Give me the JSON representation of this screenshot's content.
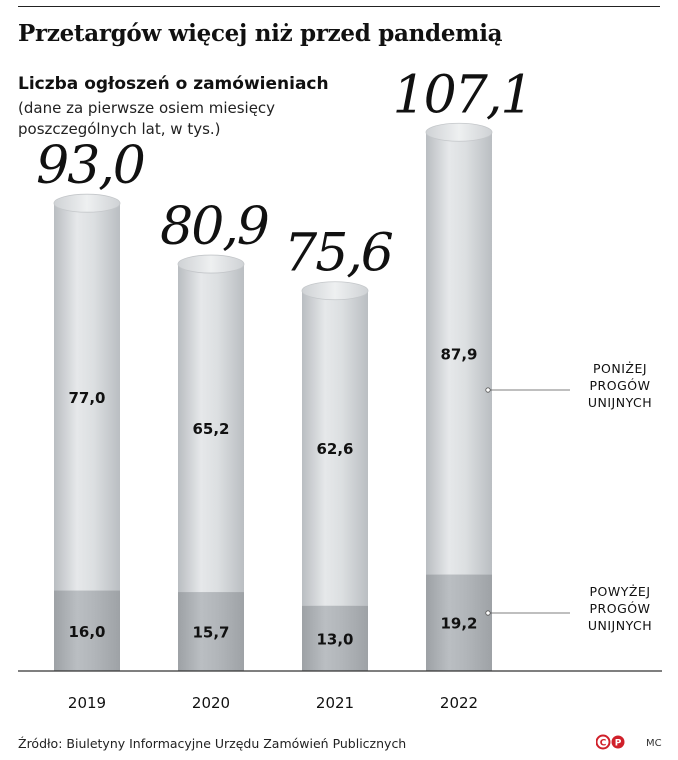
{
  "title": "Przetargów więcej niż przed pandemią",
  "subtitle": "Liczba ogłoszeń o zamówieniach",
  "note": "(dane za pierwsze osiem miesięcy poszczególnych lat, w tys.)",
  "source": "Źródło: Biuletyny Informacyjne Urzędu Zamówień Publicznych",
  "author": "MC",
  "logo_text": "©P",
  "chart_data": {
    "type": "bar",
    "stacked": true,
    "categories": [
      "2019",
      "2020",
      "2021",
      "2022"
    ],
    "totals": [
      93.0,
      80.9,
      75.6,
      107.1
    ],
    "total_labels": [
      "93,0",
      "80,9",
      "75,6",
      "107,1"
    ],
    "series": [
      {
        "name": "POWYŻEJ PROGÓW UNIJNYCH",
        "name_lines": [
          "POWYŻEJ",
          "PROGÓW",
          "UNIJNYCH"
        ],
        "values": [
          16.0,
          15.7,
          13.0,
          19.2
        ],
        "labels": [
          "16,0",
          "15,7",
          "13,0",
          "19,2"
        ],
        "color": "#a9adb1"
      },
      {
        "name": "PONIŻEJ PROGÓW UNIJNYCH",
        "name_lines": [
          "PONIŻEJ",
          "PROGÓW",
          "UNIJNYCH"
        ],
        "values": [
          77.0,
          65.2,
          62.6,
          87.9
        ],
        "labels": [
          "77,0",
          "65,2",
          "62,6",
          "87,9"
        ],
        "color": "#d4d7da"
      }
    ],
    "ylim": [
      0,
      107.1
    ],
    "grid": false,
    "legend": "right"
  }
}
